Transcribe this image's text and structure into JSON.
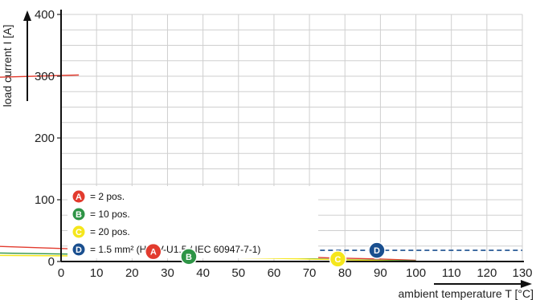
{
  "chart_data": {
    "type": "line",
    "xlabel": "ambient temperature T [°C]",
    "ylabel": "load current I [A]",
    "xlim": [
      0,
      130
    ],
    "ylim": [
      0,
      400
    ],
    "xticks": [
      "0",
      "10",
      "20",
      "30",
      "40",
      "50",
      "60",
      "70",
      "80",
      "90",
      "100",
      "110",
      "120",
      "130"
    ],
    "yticks": [
      "0",
      "100",
      "200",
      "300",
      "400"
    ],
    "grid": true,
    "legend": [
      {
        "badge": "A",
        "text": "= 2 pos.",
        "color": "#e23b2e"
      },
      {
        "badge": "B",
        "text": "= 10 pos.",
        "color": "#2e9446"
      },
      {
        "badge": "C",
        "text": "= 20 pos.",
        "color": "#f5e61c"
      },
      {
        "badge": "D",
        "text": "= 1.5 mm² (H07V-U1.5 / IEC 60947-7-1)",
        "color": "#1a4f8f"
      }
    ],
    "series": [
      {
        "badge": "A",
        "color": "#e23b2e",
        "points": [
          [
            -20,
            25
          ],
          [
            26,
            16
          ],
          [
            75,
            6
          ],
          [
            90,
            4
          ],
          [
            100,
            2
          ]
        ],
        "badge_at": [
          26,
          16
        ]
      },
      {
        "badge": "B",
        "color": "#2e9446",
        "points": [
          [
            -20,
            14
          ],
          [
            36,
            9
          ],
          [
            60,
            6
          ],
          [
            80,
            3
          ],
          [
            100,
            1
          ]
        ],
        "badge_at": [
          36,
          8
        ]
      },
      {
        "badge": "C",
        "color": "#f5e61c",
        "points": [
          [
            -20,
            10
          ],
          [
            30,
            8
          ],
          [
            60,
            5
          ],
          [
            78,
            3
          ],
          [
            100,
            0
          ]
        ],
        "badge_at": [
          78,
          4
        ]
      },
      {
        "badge": "D",
        "color": "#1a4f8f",
        "dashed": true,
        "points": [
          [
            73,
            18
          ],
          [
            130,
            18
          ]
        ],
        "badge_at": [
          89,
          18
        ]
      }
    ],
    "offscale_line": {
      "color": "#e23b2e",
      "points": [
        [
          -20,
          298
        ],
        [
          5,
          302
        ]
      ]
    }
  }
}
